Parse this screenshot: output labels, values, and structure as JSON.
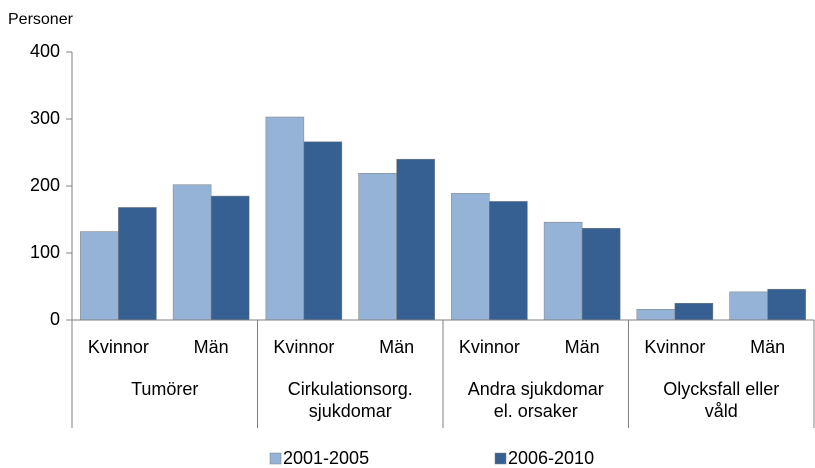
{
  "chart_data": {
    "type": "bar",
    "y_label": "Personer",
    "categories": [
      "Kvinnor",
      "Män",
      "Kvinnor",
      "Män",
      "Kvinnor",
      "Män",
      "Kvinnor",
      "Män"
    ],
    "group_labels": [
      [
        "Tumörer"
      ],
      [
        "Cirkulationsorg.",
        "sjukdomar"
      ],
      [
        "Andra sjukdomar",
        "el. orsaker"
      ],
      [
        "Olycksfall eller",
        "våld"
      ]
    ],
    "series": [
      {
        "name": "2001-2005",
        "color": "#95b3d7",
        "values": [
          132,
          202,
          303,
          219,
          189,
          146,
          16,
          42
        ]
      },
      {
        "name": "2006-2010",
        "color": "#376092",
        "values": [
          168,
          185,
          266,
          240,
          177,
          137,
          25,
          46
        ]
      }
    ],
    "ylim": [
      0,
      400
    ],
    "yticks": [
      0,
      100,
      200,
      300,
      400
    ],
    "legend": "bottom"
  }
}
